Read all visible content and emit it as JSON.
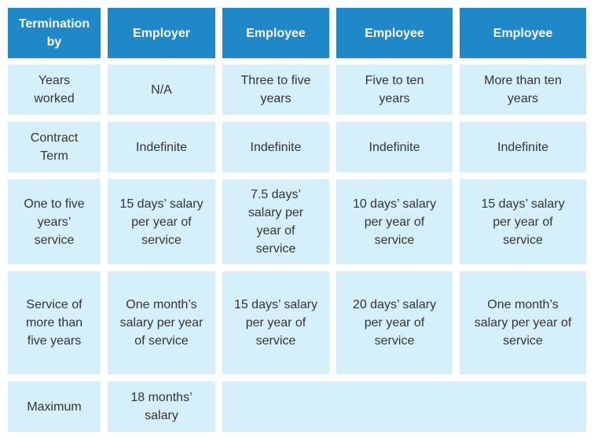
{
  "header": {
    "col0": "Termination\nby",
    "col1": "Employer",
    "col2": "Employee",
    "col3": "Employee",
    "col4": "Employee"
  },
  "rows": [
    {
      "label": "Years\nworked",
      "c1": "N/A",
      "c2": "Three to five\nyears",
      "c3": "Five to ten\nyears",
      "c4": "More than ten\nyears"
    },
    {
      "label": "Contract\nTerm",
      "c1": "Indefinite",
      "c2": "Indefinite",
      "c3": "Indefinite",
      "c4": "Indefinite"
    },
    {
      "label": "One to five\nyears’\nservice",
      "c1": "15 days’ salary\nper year of\nservice",
      "c2": "7.5 days’\nsalary per\nyear of\nservice",
      "c3": "10 days’ salary\nper year of\nservice",
      "c4": "15 days’ salary\nper year of\nservice"
    },
    {
      "label": "Service of\nmore than\nfive years",
      "c1": "One month’s\nsalary per year\nof service",
      "c2": "15 days’ salary\nper year of\nservice",
      "c3": "20 days’ salary\nper year of\nservice",
      "c4": "One month’s\nsalary per year of\nservice"
    },
    {
      "label": "Maximum",
      "c1": "18 months’\nsalary"
    }
  ]
}
